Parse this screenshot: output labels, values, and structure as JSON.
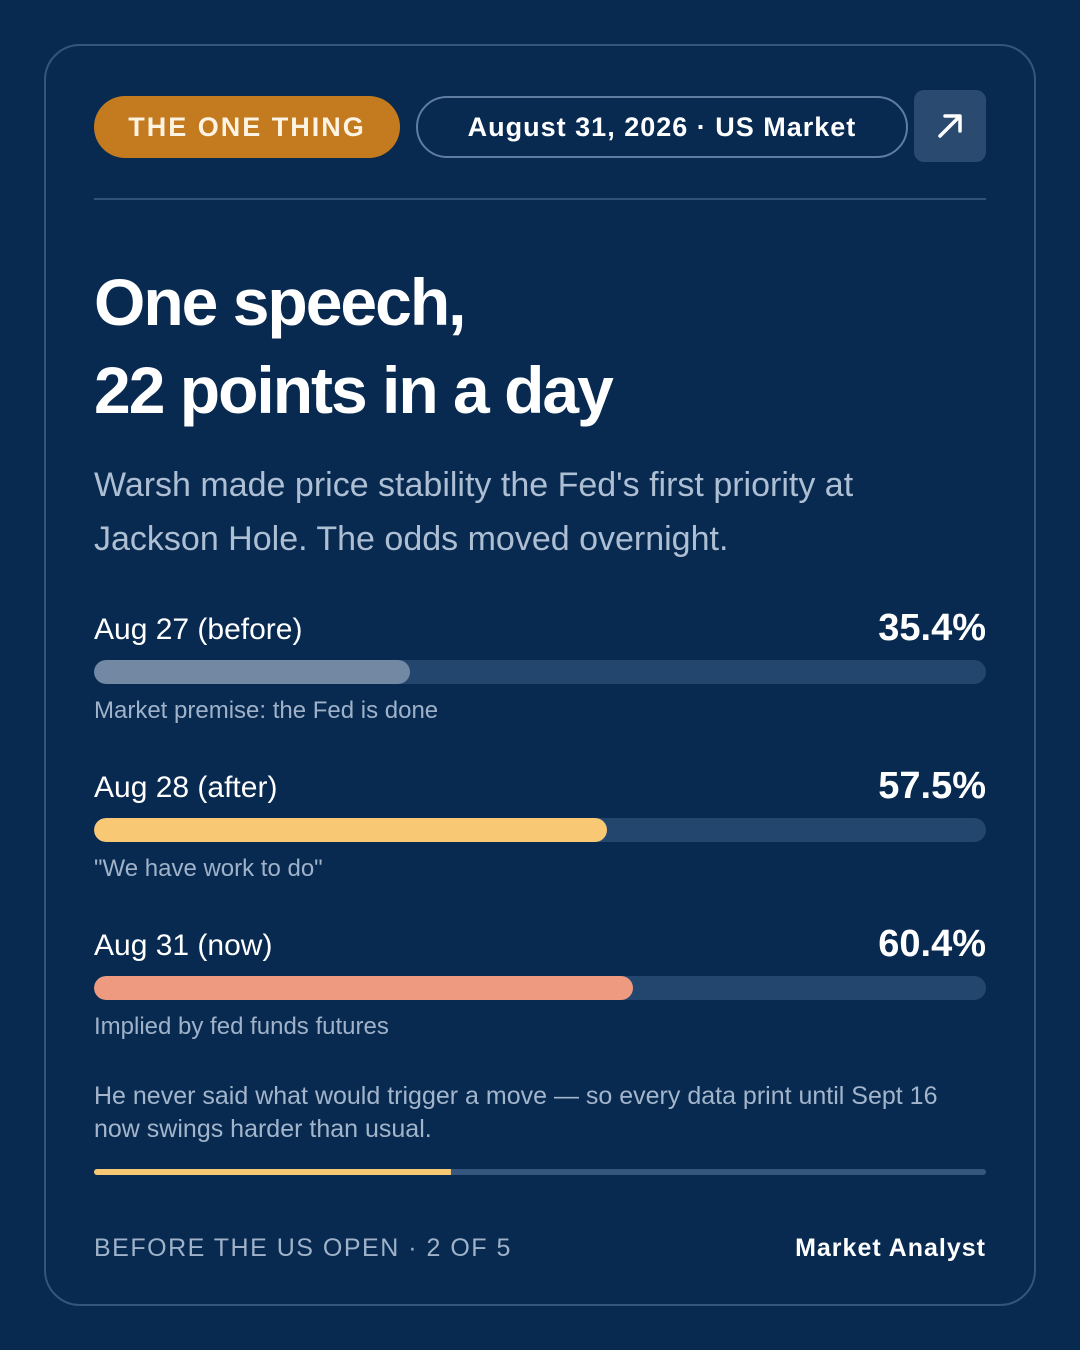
{
  "header": {
    "tag": "THE ONE THING",
    "date": "August 31, 2026 · US Market",
    "share_icon": "arrow-up-right-icon"
  },
  "headline": {
    "line1": "One speech,",
    "line2": "22 points in a day"
  },
  "subhead": "Warsh made price stability the Fed's first priority at Jackson Hole. The odds moved overnight.",
  "stats": [
    {
      "label": "Aug 27 (before)",
      "value": "35.4%",
      "percent": 35.4,
      "note": "Market premise: the Fed is done",
      "color": "#7388a3"
    },
    {
      "label": "Aug 28 (after)",
      "value": "57.5%",
      "percent": 57.5,
      "note": "\"We have work to do\"",
      "color": "#f9c874"
    },
    {
      "label": "Aug 31 (now)",
      "value": "60.4%",
      "percent": 60.4,
      "note": "Implied by fed funds futures",
      "color": "#ee9a80"
    }
  ],
  "footnote": "He never said what would trigger a move — so every data print until Sept 16 now swings harder than usual.",
  "progress": {
    "current": 2,
    "total": 5
  },
  "footer": {
    "left": "BEFORE THE US OPEN · 2 OF 5",
    "right": "Market Analyst"
  },
  "colors": {
    "background": "#082a50",
    "tag": "#c47a1e",
    "progress": "#f7c873"
  }
}
